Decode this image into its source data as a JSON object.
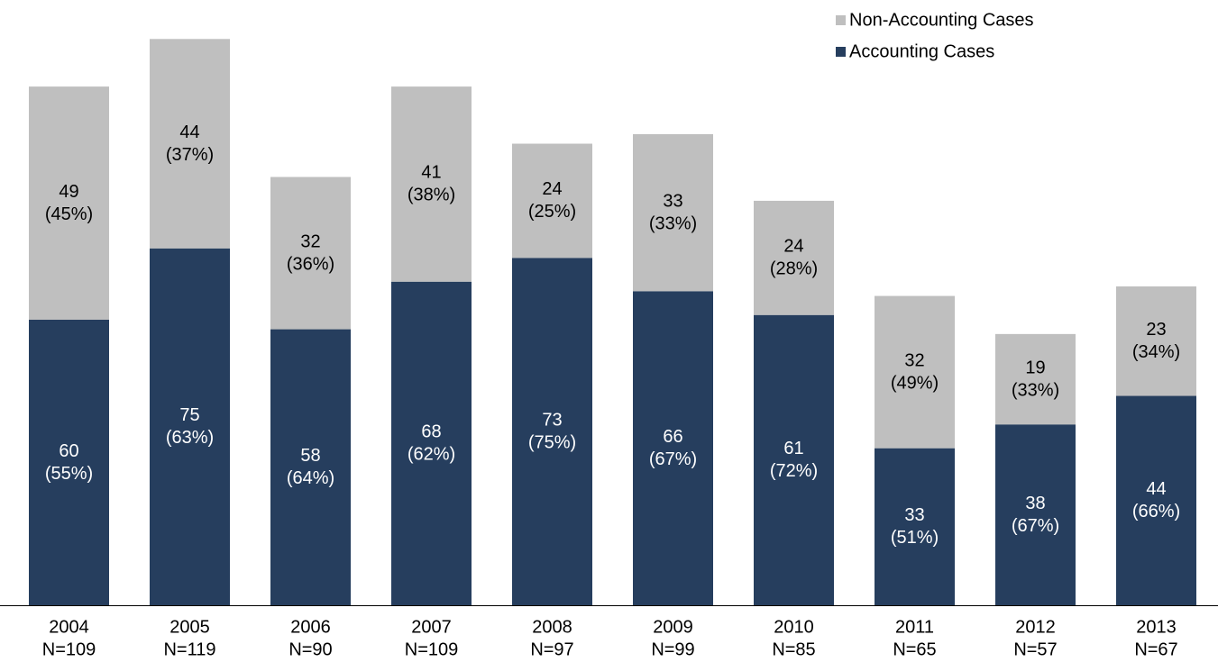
{
  "chart_data": {
    "type": "stacked_bar",
    "categories": [
      "2004",
      "2005",
      "2006",
      "2007",
      "2008",
      "2009",
      "2010",
      "2011",
      "2012",
      "2013"
    ],
    "category_counts": [
      "N=109",
      "N=119",
      "N=90",
      "N=109",
      "N=97",
      "N=99",
      "N=85",
      "N=65",
      "N=57",
      "N=67"
    ],
    "series": [
      {
        "name": "Accounting Cases",
        "color": "#263e5e",
        "values": [
          60,
          75,
          58,
          68,
          73,
          66,
          61,
          33,
          38,
          44
        ],
        "percent_labels": [
          "(55%)",
          "(63%)",
          "(64%)",
          "(62%)",
          "(75%)",
          "(67%)",
          "(72%)",
          "(51%)",
          "(67%)",
          "(66%)"
        ]
      },
      {
        "name": "Non-Accounting Cases",
        "color": "#bfbfbf",
        "values": [
          49,
          44,
          32,
          41,
          24,
          33,
          24,
          32,
          19,
          23
        ],
        "percent_labels": [
          "(45%)",
          "(37%)",
          "(36%)",
          "(38%)",
          "(25%)",
          "(33%)",
          "(28%)",
          "(49%)",
          "(33%)",
          "(34%)"
        ]
      }
    ],
    "ylim": [
      0,
      120
    ],
    "legend": "top-right"
  }
}
